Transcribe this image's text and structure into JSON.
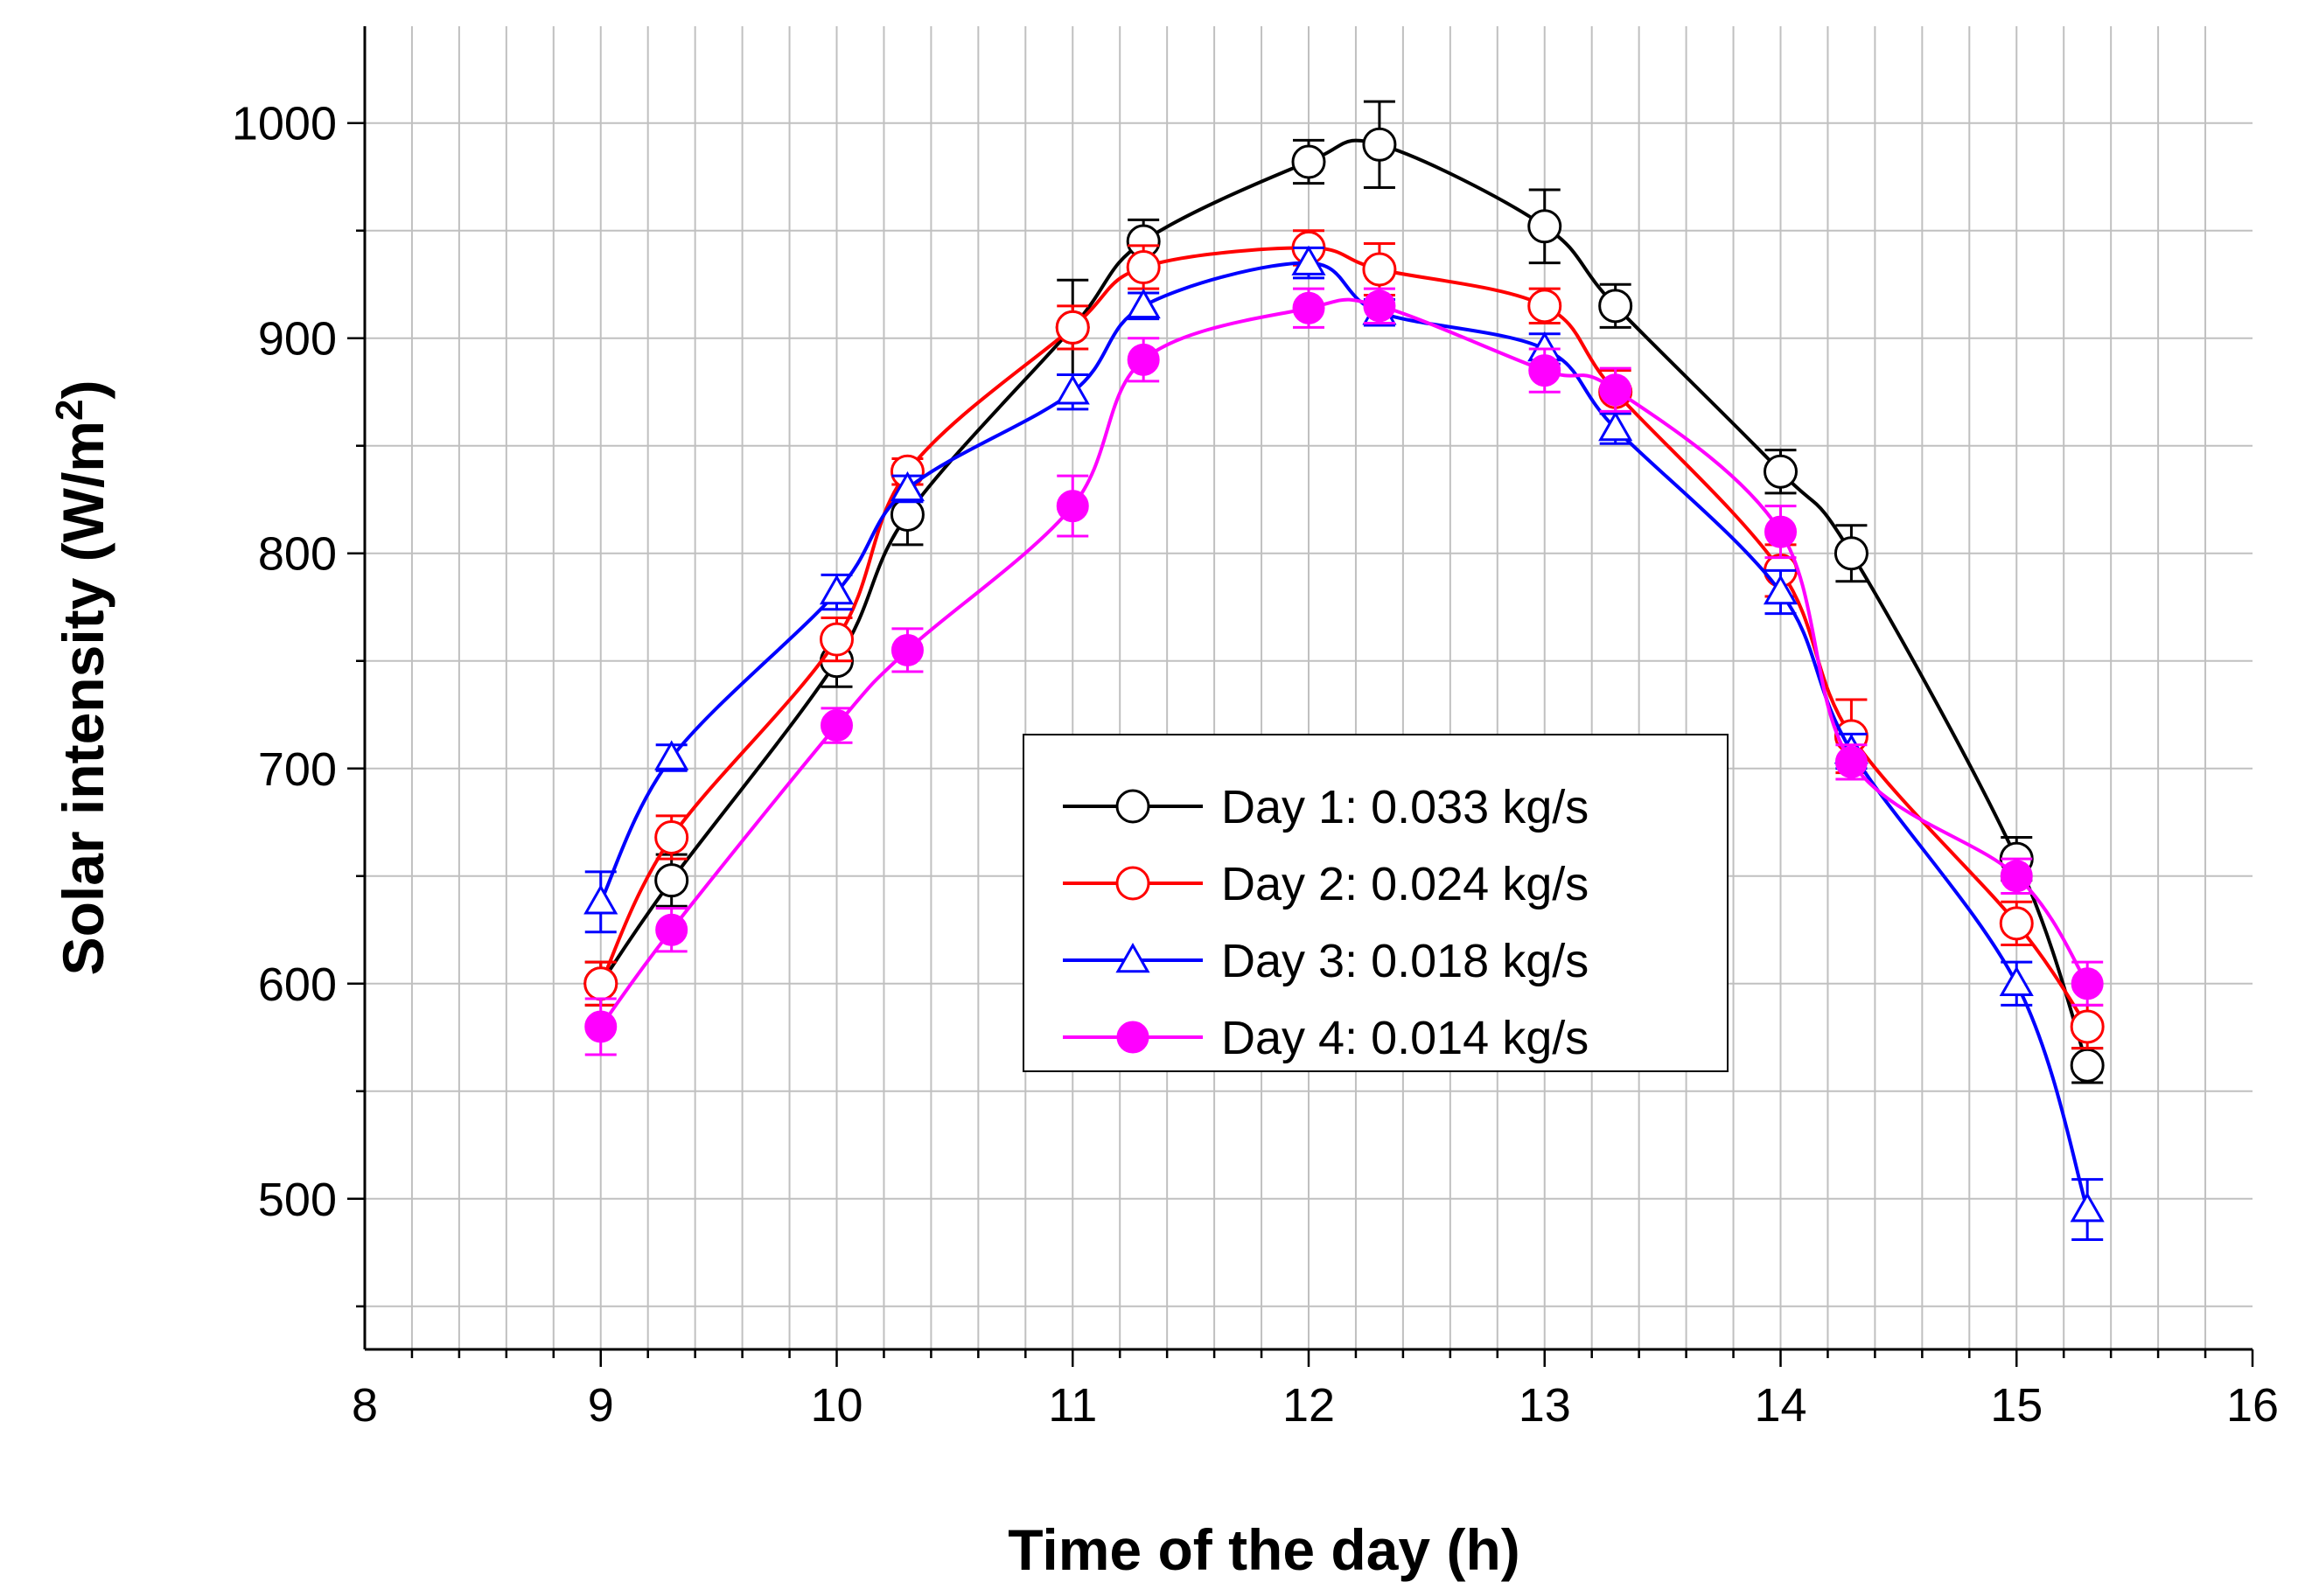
{
  "chart_data": {
    "type": "line",
    "xlabel": "Time of the day (h)",
    "ylabel_main": "Solar intensity (W/m",
    "ylabel_sup": "2",
    "ylabel_close": ")",
    "xlim": [
      8,
      16
    ],
    "ylim": [
      430,
      1045
    ],
    "x_ticks": [
      8,
      9,
      10,
      11,
      12,
      13,
      14,
      15,
      16
    ],
    "x_tick_labels": [
      "8",
      "9",
      "10",
      "11",
      "12",
      "13",
      "14",
      "15",
      "16"
    ],
    "y_ticks": [
      500,
      600,
      700,
      800,
      900,
      1000
    ],
    "y_tick_labels": [
      "500",
      "600",
      "700",
      "800",
      "900",
      "1000"
    ],
    "grid": true,
    "legend_position": "center-right",
    "x": [
      9,
      9.3,
      10,
      10.3,
      11,
      11.3,
      12,
      12.3,
      13,
      13.3,
      14,
      14.3,
      15,
      15.3
    ],
    "series": [
      {
        "name": "Day 1: 0.033 kg/s",
        "color": "#000000",
        "marker": "open-circle",
        "values": [
          600,
          648,
          750,
          818,
          905,
          945,
          982,
          990,
          952,
          915,
          838,
          800,
          658,
          562
        ],
        "errors": [
          10,
          12,
          12,
          14,
          22,
          10,
          10,
          20,
          17,
          10,
          10,
          13,
          10,
          8
        ]
      },
      {
        "name": "Day 2: 0.024 kg/s",
        "color": "#ff0000",
        "marker": "open-circle",
        "values": [
          600,
          668,
          760,
          838,
          905,
          933,
          942,
          932,
          915,
          875,
          792,
          715,
          628,
          580
        ],
        "errors": [
          10,
          10,
          10,
          6,
          10,
          10,
          8,
          12,
          8,
          10,
          12,
          17,
          10,
          10
        ]
      },
      {
        "name": "Day 3: 0.018 kg/s",
        "color": "#0000ff",
        "marker": "open-triangle",
        "values": [
          638,
          705,
          782,
          830,
          875,
          915,
          935,
          912,
          895,
          858,
          782,
          708,
          600,
          495
        ],
        "errors": [
          14,
          6,
          8,
          6,
          8,
          6,
          7,
          6,
          7,
          7,
          10,
          8,
          10,
          14
        ]
      },
      {
        "name": "Day 4: 0.014 kg/s",
        "color": "#ff00ff",
        "marker": "filled-circle",
        "values": [
          580,
          625,
          720,
          755,
          822,
          890,
          914,
          915,
          885,
          876,
          810,
          703,
          650,
          600
        ],
        "errors": [
          13,
          10,
          8,
          10,
          14,
          10,
          9,
          8,
          10,
          10,
          12,
          8,
          8,
          10
        ]
      }
    ]
  }
}
